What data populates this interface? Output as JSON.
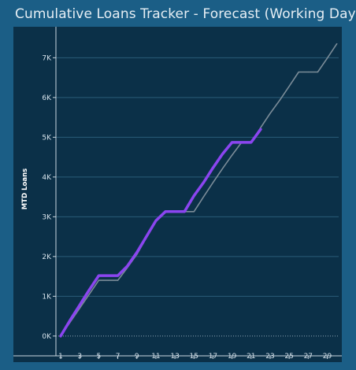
{
  "window": {
    "title": "Cumulative Loans Tracker - Forecast (Working Days)"
  },
  "colors": {
    "background": "#1b5e86",
    "plot_background": "#0b3048",
    "actual_line": "#8b45f0",
    "forecast_line": "#7b8c98",
    "gridline": "#2b5c78",
    "axis": "#c9d6e0"
  },
  "chart_data": {
    "type": "line",
    "title": "Cumulative Loans Tracker - Forecast (Working Days)",
    "xlabel": "",
    "ylabel": "MTD Loans",
    "xlim": [
      0.5,
      30.2
    ],
    "ylim": [
      -300,
      7700
    ],
    "x_ticks": [
      1,
      3,
      5,
      7,
      9,
      11,
      13,
      15,
      17,
      19,
      21,
      23,
      25,
      27,
      29
    ],
    "y_ticks": [
      0,
      1000,
      2000,
      3000,
      4000,
      5000,
      6000,
      7000
    ],
    "y_tick_labels": [
      "0K",
      "1K",
      "2K",
      "3K",
      "4K",
      "5K",
      "6K",
      "7K"
    ],
    "grid": true,
    "legend": "none",
    "series": [
      {
        "role": "forecast",
        "x": [
          1,
          2,
          3,
          4,
          5,
          6,
          7,
          8,
          9,
          10,
          11,
          12,
          13,
          14,
          15,
          16,
          17,
          18,
          19,
          20,
          21,
          22,
          23,
          24,
          25,
          26,
          27,
          28,
          29,
          30
        ],
        "values": [
          0,
          350,
          700,
          1050,
          1400,
          1400,
          1400,
          1720,
          2050,
          2470,
          2880,
          3130,
          3130,
          3130,
          3130,
          3500,
          3860,
          4210,
          4550,
          4870,
          4870,
          5240,
          5600,
          5930,
          6280,
          6640,
          6640,
          6640,
          6990,
          7350
        ]
      },
      {
        "role": "actual",
        "x": [
          1,
          2,
          3,
          4,
          5,
          6,
          7,
          8,
          9,
          10,
          11,
          12,
          13,
          14,
          15,
          16,
          17,
          18,
          19,
          20,
          21,
          22
        ],
        "values": [
          0,
          400,
          780,
          1160,
          1520,
          1520,
          1520,
          1760,
          2100,
          2500,
          2900,
          3130,
          3130,
          3130,
          3530,
          3860,
          4230,
          4580,
          4870,
          4870,
          4870,
          5200
        ]
      }
    ]
  }
}
